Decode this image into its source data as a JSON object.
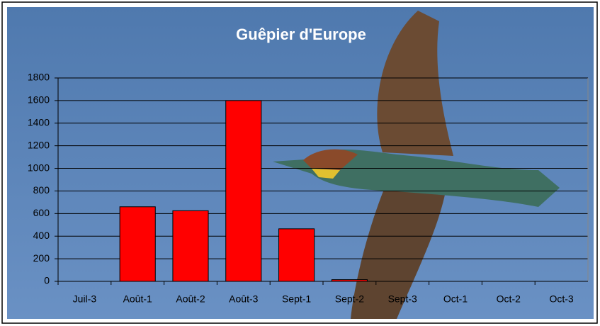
{
  "chart_data": {
    "type": "bar",
    "title": "Guêpier d'Europe",
    "categories": [
      "Juil-3",
      "Août-1",
      "Août-2",
      "Août-3",
      "Sept-1",
      "Sept-2",
      "Sept-3",
      "Oct-1",
      "Oct-2",
      "Oct-3"
    ],
    "values": [
      0,
      660,
      625,
      1600,
      465,
      15,
      0,
      0,
      0,
      0
    ],
    "color": "#ff0000",
    "ylim": [
      0,
      1800
    ],
    "yticks": [
      0,
      200,
      400,
      600,
      800,
      1000,
      1200,
      1400,
      1600,
      1800
    ],
    "grid": true
  }
}
